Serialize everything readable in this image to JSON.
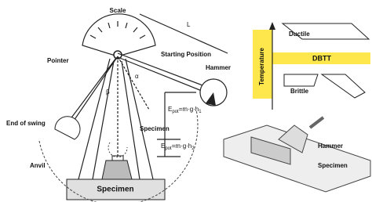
{
  "pendulum": {
    "scale": "Scale",
    "length": "L",
    "pointer": "Pointer",
    "starting_position": "Starting Position",
    "hammer": "Hammer",
    "alpha": "α",
    "beta": "β",
    "energy_start": {
      "symbol": "E",
      "symbol_sub": "pot",
      "formula": "=m·g·h",
      "formula_sub": "1"
    },
    "end_of_swing": "End of swing",
    "specimen": "Specimen",
    "energy_end": {
      "symbol": "E",
      "symbol_sub": "pot",
      "formula": "=m·g·h",
      "formula_sub": "2"
    },
    "anvil": "Anvil",
    "base_specimen": "Specimen"
  },
  "transition": {
    "axis": "Temperature",
    "ductile": "Ductile",
    "dbtt": "DBTT",
    "brittle": "Brittle"
  },
  "detail": {
    "hammer": "Hammer",
    "specimen": "Specimen"
  }
}
